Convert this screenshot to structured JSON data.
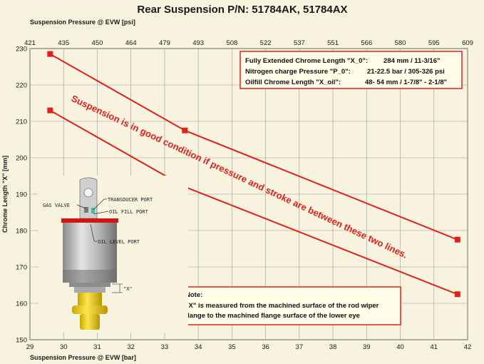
{
  "chart_data": {
    "type": "line",
    "title": "Rear Suspension P/N: 51784AK, 51784AX",
    "xlabel": "Suspension Pressure @ EVW [bar]",
    "x2label": "Suspension Pressure @ EVW [psi]",
    "ylabel": "Chrome Length \"X\" [mm]",
    "xlim": [
      29,
      42
    ],
    "ylim": [
      150,
      230
    ],
    "x_ticks": [
      29,
      30,
      31,
      32,
      33,
      34,
      35,
      36,
      37,
      38,
      39,
      40,
      41,
      42
    ],
    "y_ticks": [
      150,
      160,
      170,
      180,
      190,
      200,
      210,
      220,
      230
    ],
    "x2_ticks": [
      "421",
      "435",
      "450",
      "464",
      "479",
      "493",
      "508",
      "522",
      "537",
      "551",
      "566",
      "580",
      "595",
      "609"
    ],
    "grid": true,
    "series": [
      {
        "x": [
          29.6,
          33.6,
          41.7
        ],
        "y": [
          228.5,
          207.5,
          177.5
        ]
      },
      {
        "x": [
          29.6,
          33.6,
          41.7
        ],
        "y": [
          213,
          192,
          162.5
        ]
      }
    ],
    "color": "#e0201b",
    "specs": [
      {
        "label": "Fully Extended Chrome Length \"X_0\":",
        "value": "284 mm / 11-3/16\""
      },
      {
        "label": "Nitrogen charge Pressure \"P_0\":",
        "value": "21-22.5 bar / 305-326 psi"
      },
      {
        "label": "Oilfill Chrome Length \"X_oil\":",
        "value": "48- 54 mm /  1-7/8\" - 2-1/8\""
      }
    ],
    "annotation": "Suspension is in good condition if pressure and stroke are between these two lines.",
    "note": {
      "heading": "Note:",
      "lines": [
        "\"X\" is measured from the machined surface of the rod wiper",
        "flange to the machined flange surface of the lower eye"
      ]
    },
    "part_labels": {
      "transducer": "TRANSDUCER PORT",
      "gas_valve": "GAS VALVE",
      "oil_fill": "OIL FILL PORT",
      "oil_level": "OIL LEVEL PORT",
      "x_dim": "\"X\""
    }
  }
}
